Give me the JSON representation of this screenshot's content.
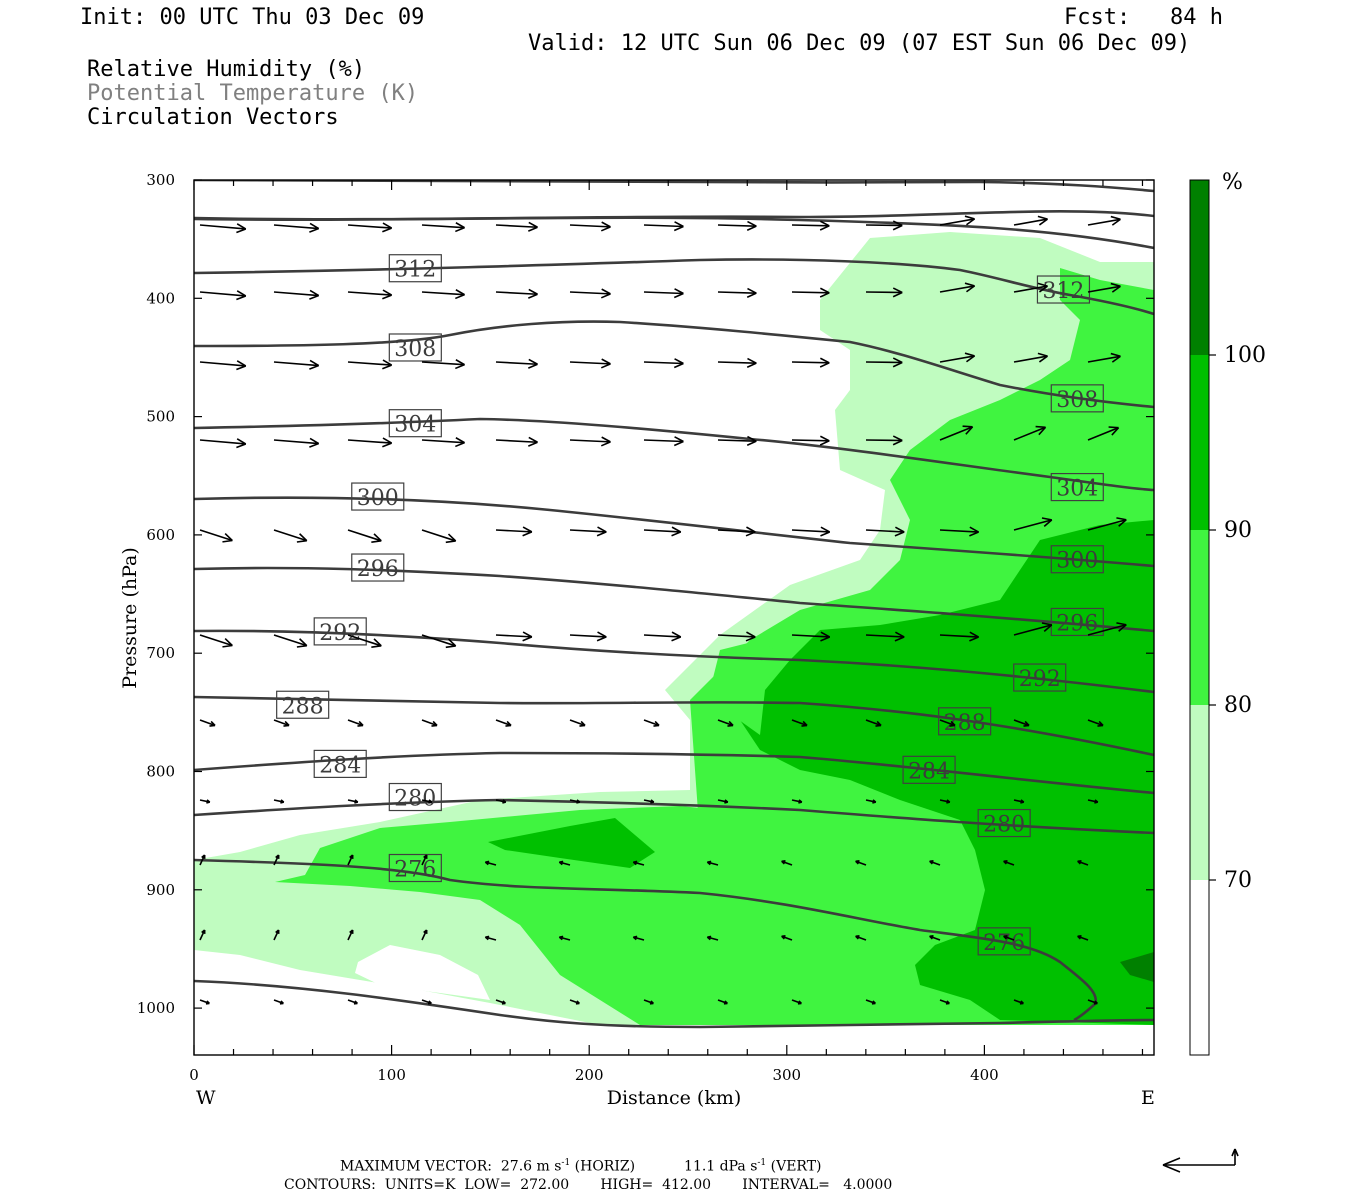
{
  "header": {
    "init": "Init: 00 UTC Thu 03 Dec 09",
    "fcst": "Fcst:   84 h",
    "valid": "Valid: 12 UTC Sun 06 Dec 09 (07 EST Sun 06 Dec 09)",
    "legend": [
      "Relative Humidity (%)",
      "Potential Temperature (K)",
      "Circulation Vectors"
    ]
  },
  "footer": {
    "vector_prefix": "MAXIMUM VECTOR:  27.6 m s",
    "vector_horiz": "(HORIZ)",
    "vector_vert_value": "11.1 dPa s",
    "vector_vert": "(VERT)",
    "exponent": "-1",
    "contours": "CONTOURS:  UNITS=K  LOW=  272.00       HIGH=  412.00       INTERVAL=   4.0000"
  },
  "colors": {
    "rh_70_80": "#c0fcc0",
    "rh_80_90": "#40f440",
    "rh_90_100": "#00c000",
    "rh_100": "#008000",
    "isentrope": "#3c3c3c"
  },
  "chart_data": {
    "type": "contour-cross-section",
    "xlabel": "Distance (km)",
    "ylabel": "Pressure (hPa)",
    "xlim": [
      0,
      485
    ],
    "ylim": [
      1040,
      300
    ],
    "x_ticks": [
      "0",
      "100",
      "200",
      "300",
      "400"
    ],
    "y_ticks": [
      "300",
      "400",
      "500",
      "600",
      "700",
      "800",
      "900",
      "1000"
    ],
    "x_end_labels": {
      "left": "W",
      "right": "E"
    },
    "colorbar": {
      "unit": "%",
      "levels": [
        "70",
        "80",
        "90",
        "100"
      ]
    },
    "theta_labels": [
      {
        "x": 112,
        "p": 375,
        "v": "312"
      },
      {
        "x": 440,
        "p": 393,
        "v": "312"
      },
      {
        "x": 112,
        "p": 442,
        "v": "308"
      },
      {
        "x": 447,
        "p": 485,
        "v": "308"
      },
      {
        "x": 112,
        "p": 506,
        "v": "304"
      },
      {
        "x": 447,
        "p": 560,
        "v": "304"
      },
      {
        "x": 93,
        "p": 568,
        "v": "300"
      },
      {
        "x": 447,
        "p": 621,
        "v": "300"
      },
      {
        "x": 93,
        "p": 628,
        "v": "296"
      },
      {
        "x": 447,
        "p": 674,
        "v": "296"
      },
      {
        "x": 74,
        "p": 682,
        "v": "292"
      },
      {
        "x": 428,
        "p": 721,
        "v": "292"
      },
      {
        "x": 55,
        "p": 744,
        "v": "288"
      },
      {
        "x": 390,
        "p": 758,
        "v": "288"
      },
      {
        "x": 74,
        "p": 794,
        "v": "284"
      },
      {
        "x": 372,
        "p": 799,
        "v": "284"
      },
      {
        "x": 112,
        "p": 822,
        "v": "280"
      },
      {
        "x": 410,
        "p": 844,
        "v": "280"
      },
      {
        "x": 112,
        "p": 882,
        "v": "276"
      },
      {
        "x": 410,
        "p": 944,
        "v": "276"
      }
    ]
  }
}
